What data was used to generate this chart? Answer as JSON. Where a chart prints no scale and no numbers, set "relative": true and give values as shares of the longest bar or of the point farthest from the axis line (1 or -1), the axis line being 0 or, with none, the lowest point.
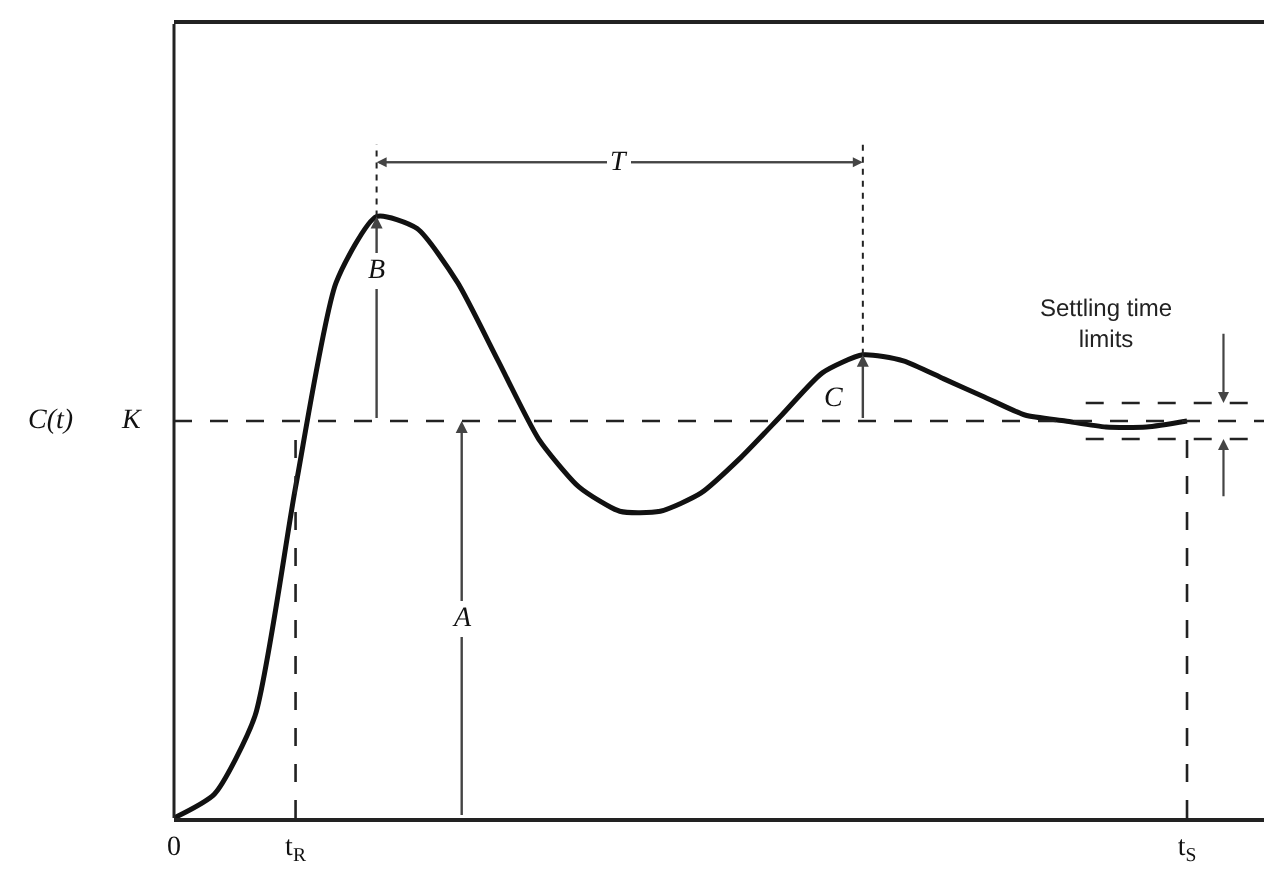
{
  "chart_data": {
    "type": "line",
    "relative": true,
    "ylabel": "C(t)",
    "categories": [
      "0",
      null,
      null,
      "t$_{R}$",
      null,
      null,
      null,
      null,
      null,
      null,
      null,
      null,
      null,
      null,
      null,
      null,
      null,
      null,
      null,
      null,
      null,
      null,
      null,
      null,
      null,
      "t$_{S}$"
    ],
    "series": [
      {
        "color": "#111111",
        "values": [
          0,
          0.04,
          0.17,
          0.55,
          0.89,
          1,
          0.98,
          0.89,
          0.76,
          0.63,
          0.55,
          0.51,
          0.51,
          0.54,
          0.6,
          0.67,
          0.74,
          0.77,
          0.76,
          0.73,
          0.7,
          0.67,
          0.66,
          0.65,
          0.65,
          0.66
        ]
      }
    ],
    "ref_lines": [
      {
        "axis": "y",
        "value": 0.66,
        "label": "K",
        "line_style": "dashed"
      },
      {
        "axis": "x",
        "value": "t$_{R}$",
        "line_style": "dashed"
      },
      {
        "axis": "x",
        "value": "t$_{S}$",
        "line_style": "dashed"
      },
      {
        "axis": "y",
        "value": 0.69,
        "line_style": "dashed"
      },
      {
        "axis": "y",
        "value": 0.63,
        "line_style": "dashed"
      }
    ],
    "annotations": [
      "A",
      "B",
      "C",
      "T",
      "Settling time limits"
    ],
    "marker": "none",
    "line_style": "solid"
  }
}
